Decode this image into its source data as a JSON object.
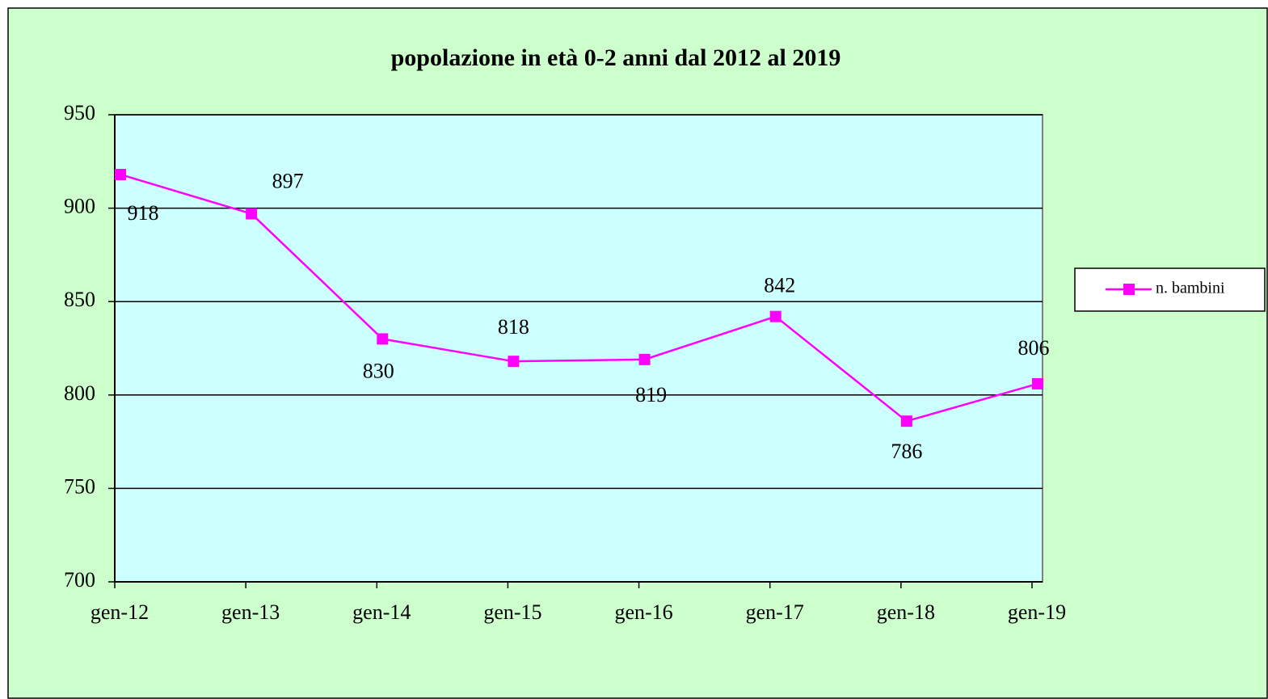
{
  "chart_data": {
    "type": "line",
    "title": "popolazione in età 0-2 anni dal 2012 al 2019",
    "categories": [
      "gen-12",
      "gen-13",
      "gen-14",
      "gen-15",
      "gen-16",
      "gen-17",
      "gen-18",
      "gen-19"
    ],
    "series": [
      {
        "name": "n. bambini",
        "color": "#ff00ff",
        "values": [
          918,
          897,
          830,
          818,
          819,
          842,
          786,
          806
        ]
      }
    ],
    "ylim": [
      700,
      950
    ],
    "yticks": [
      700,
      750,
      800,
      850,
      900,
      950
    ],
    "grid": true,
    "legend": "right"
  }
}
